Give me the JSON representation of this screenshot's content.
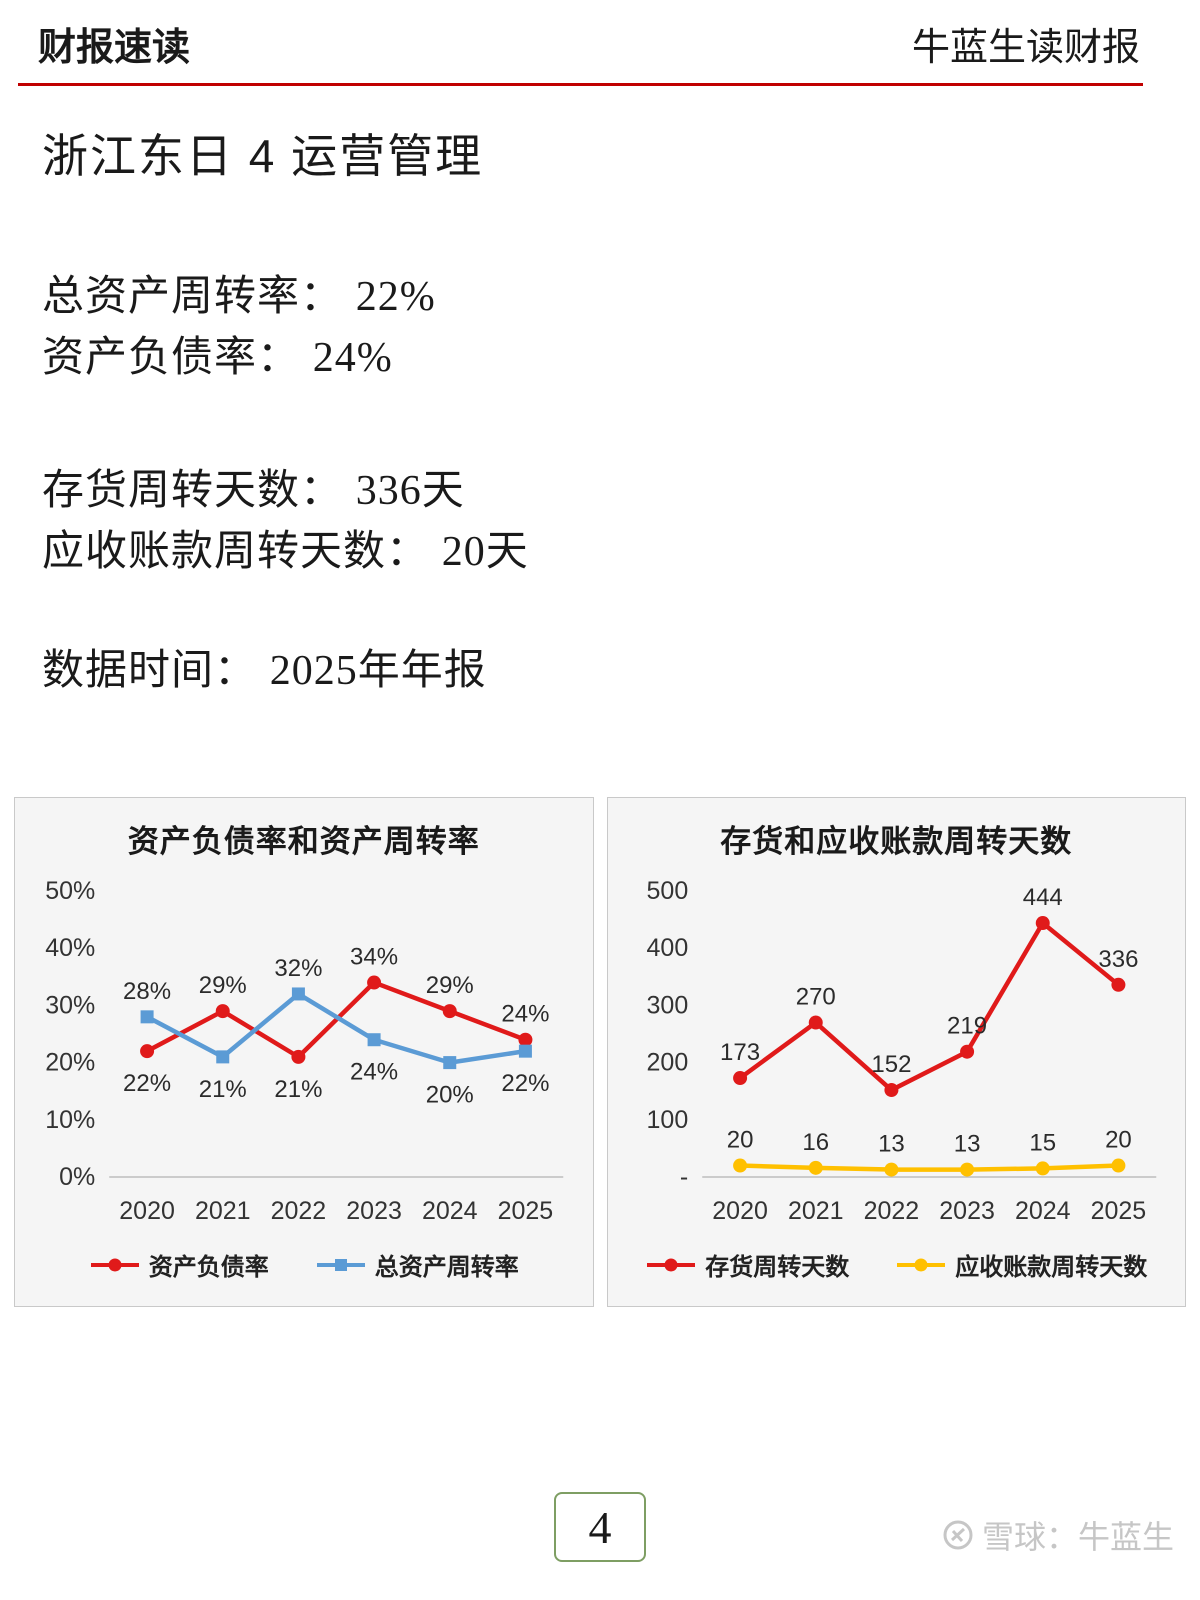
{
  "header": {
    "left_title": "财报速读",
    "right_title": "牛蓝生读财报",
    "rule_color": "#c00000"
  },
  "page_title": "浙江东日 4 运营管理",
  "stats": [
    {
      "label": "总资产周转率：",
      "value": "22%"
    },
    {
      "label": "资产负债率：",
      "value": "24%"
    },
    {
      "label": "存货周转天数：",
      "value": "336天"
    },
    {
      "label": "应收账款周转天数：",
      "value": "20天"
    },
    {
      "label": "数据时间：",
      "value": "2025年年报"
    }
  ],
  "chart_data": [
    {
      "type": "line",
      "title": "资产负债率和资产周转率",
      "categories": [
        "2020",
        "2021",
        "2022",
        "2023",
        "2024",
        "2025"
      ],
      "series": [
        {
          "name": "资产负债率",
          "color": "#e01a1a",
          "marker": "circle",
          "unit": "%",
          "values": [
            22,
            29,
            21,
            34,
            29,
            24
          ]
        },
        {
          "name": "总资产周转率",
          "color": "#5b9bd5",
          "marker": "square",
          "unit": "%",
          "values": [
            28,
            21,
            32,
            24,
            20,
            22
          ]
        }
      ],
      "ylim": [
        0,
        50
      ],
      "yticks": [
        "0%",
        "10%",
        "20%",
        "30%",
        "40%",
        "50%"
      ],
      "label_mode": "split",
      "legend_position": "bottom",
      "grid": false
    },
    {
      "type": "line",
      "title": "存货和应收账款周转天数",
      "categories": [
        "2020",
        "2021",
        "2022",
        "2023",
        "2024",
        "2025"
      ],
      "series": [
        {
          "name": "存货周转天数",
          "color": "#e01a1a",
          "marker": "circle",
          "unit": "",
          "values": [
            173,
            270,
            152,
            219,
            444,
            336
          ]
        },
        {
          "name": "应收账款周转天数",
          "color": "#ffc000",
          "marker": "circle",
          "unit": "",
          "values": [
            20,
            16,
            13,
            13,
            15,
            20
          ]
        }
      ],
      "ylim": [
        0,
        500
      ],
      "yticks": [
        "-",
        "100",
        "200",
        "300",
        "400",
        "500"
      ],
      "label_mode": "above",
      "legend_position": "bottom",
      "grid": false
    }
  ],
  "footer": {
    "page_number": "4",
    "watermark": "雪球：牛蓝生"
  }
}
